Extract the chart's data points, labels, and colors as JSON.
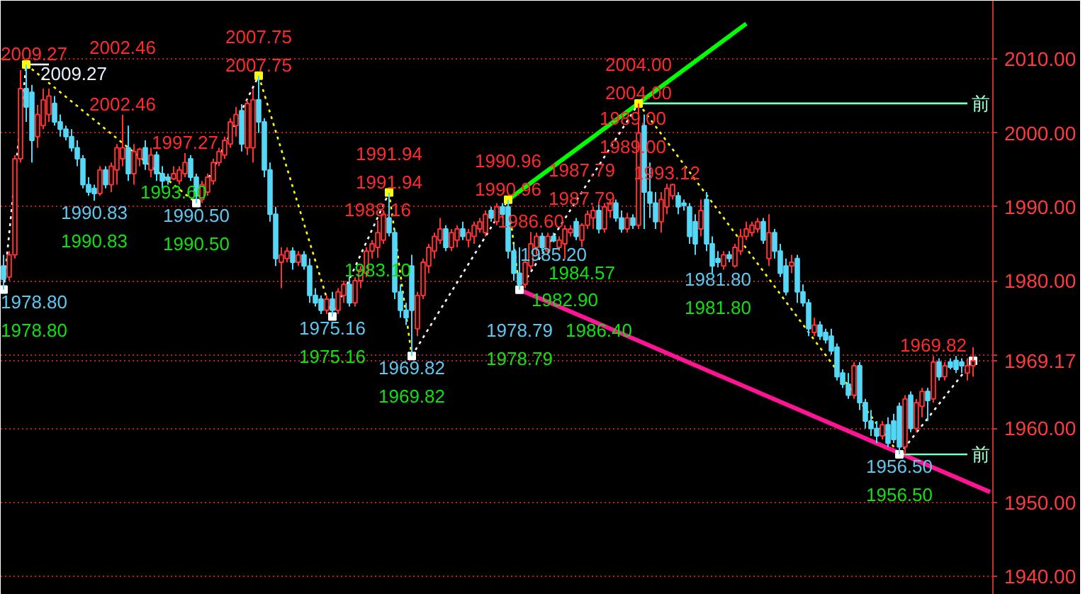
{
  "chart_data": {
    "type": "candlestick",
    "categories": [
      null,
      null,
      null,
      null,
      null,
      null,
      null,
      null,
      null,
      null,
      null,
      null,
      null,
      null,
      null,
      null,
      null,
      null,
      null,
      null,
      null,
      null,
      null,
      null,
      null,
      null,
      null,
      null,
      null,
      null,
      null,
      null,
      null,
      null,
      null,
      null,
      null,
      null,
      null,
      null,
      null,
      null,
      null,
      null,
      null,
      null,
      null,
      null,
      null,
      null,
      null,
      null,
      null,
      null,
      null,
      null,
      null,
      null,
      null,
      null,
      null,
      null,
      null,
      null,
      null,
      null,
      null,
      null,
      null,
      null,
      null,
      null,
      null,
      null,
      null,
      null,
      null,
      null,
      null,
      null,
      null,
      null,
      null,
      null,
      null,
      null,
      null,
      null,
      null,
      null,
      null,
      null,
      null,
      null,
      null,
      null,
      null,
      null,
      null,
      null,
      null,
      null,
      null,
      null,
      null,
      null,
      null,
      null,
      null,
      null,
      null,
      null,
      null,
      null,
      null,
      null,
      null,
      null,
      null,
      null,
      null,
      null,
      null,
      null,
      null,
      null,
      null,
      null,
      null,
      null,
      null,
      null,
      null,
      null,
      null,
      null,
      null,
      null,
      null,
      null,
      null,
      null,
      null,
      null,
      null,
      null,
      null,
      null,
      null,
      null,
      null,
      null,
      null,
      null,
      null,
      null,
      null,
      null,
      null,
      null,
      null,
      null,
      null,
      null,
      null,
      null,
      null,
      null,
      null,
      null,
      null,
      null,
      null,
      null,
      null
    ],
    "ohlc": [
      [
        1982.0,
        1983.5,
        1978.8,
        1980.2
      ],
      [
        1980.5,
        1984.0,
        1980.0,
        1983.5
      ],
      [
        1983.5,
        1997.0,
        1983.0,
        1996.5
      ],
      [
        1996.5,
        2008.5,
        1996.0,
        2006.0
      ],
      [
        2006.0,
        2009.27,
        2001.5,
        2003.5
      ],
      [
        2005.5,
        2006.5,
        1996.0,
        1999.0
      ],
      [
        1999.5,
        2003.8,
        1998.0,
        2002.5
      ],
      [
        2001.0,
        2006.0,
        2000.5,
        2004.5
      ],
      [
        2002.5,
        2006.0,
        2001.5,
        2005.0
      ],
      [
        2004.0,
        2005.0,
        2001.0,
        2001.5
      ],
      [
        2001.5,
        2002.5,
        1999.5,
        2000.5
      ],
      [
        2000.5,
        2001.0,
        1999.0,
        1999.5
      ],
      [
        1999.5,
        2000.5,
        1997.5,
        1998.0
      ],
      [
        1998.0,
        1999.0,
        1995.5,
        1996.5
      ],
      [
        1996.5,
        1997.0,
        1992.5,
        1993.0
      ],
      [
        1993.0,
        1994.0,
        1991.5,
        1992.0
      ],
      [
        1992.5,
        1993.0,
        1990.83,
        1991.8
      ],
      [
        1991.8,
        1995.5,
        1991.5,
        1995.0
      ],
      [
        1995.0,
        1995.5,
        1992.5,
        1993.0
      ],
      [
        1993.0,
        1996.0,
        1992.0,
        1995.5
      ],
      [
        1995.0,
        1998.5,
        1993.0,
        1998.0
      ],
      [
        1996.5,
        2002.46,
        1995.5,
        1998.0
      ],
      [
        1998.0,
        2001.0,
        1993.5,
        1994.5
      ],
      [
        1994.5,
        1998.5,
        1993.0,
        1997.5
      ],
      [
        1996.5,
        1998.0,
        1995.5,
        1997.8
      ],
      [
        1998.0,
        1999.0,
        1995.0,
        1995.8
      ],
      [
        1995.0,
        1998.0,
        1994.0,
        1997.0
      ],
      [
        1997.0,
        1997.5,
        1993.5,
        1994.5
      ],
      [
        1994.5,
        1995.5,
        1992.5,
        1993.5
      ],
      [
        1994.0,
        1994.5,
        1993.0,
        1993.6
      ],
      [
        1993.8,
        1995.5,
        1993.6,
        1994.5
      ],
      [
        1993.5,
        1995.5,
        1993.0,
        1995.0
      ],
      [
        1994.5,
        1997.27,
        1994.0,
        1996.0
      ],
      [
        1996.5,
        1997.0,
        1993.5,
        1994.0
      ],
      [
        1994.0,
        1994.5,
        1990.5,
        1991.5
      ],
      [
        1991.0,
        1993.5,
        1990.5,
        1993.0
      ],
      [
        1992.0,
        1994.5,
        1991.5,
        1994.0
      ],
      [
        1993.5,
        1996.5,
        1993.0,
        1996.0
      ],
      [
        1996.0,
        1998.0,
        1995.5,
        1997.5
      ],
      [
        1997.0,
        1999.5,
        1996.5,
        1999.0
      ],
      [
        1998.5,
        2002.0,
        1998.0,
        2001.5
      ],
      [
        2001.0,
        2003.5,
        1999.5,
        2002.5
      ],
      [
        2003.0,
        2003.9,
        1997.5,
        1998.5
      ],
      [
        1998.0,
        2004.5,
        1997.0,
        2004.0
      ],
      [
        1998.0,
        2006.0,
        1996.0,
        2004.5
      ],
      [
        2004.5,
        2007.75,
        2000.0,
        2001.5
      ],
      [
        2001.5,
        2002.0,
        1994.0,
        1995.0
      ],
      [
        1995.0,
        1996.0,
        1988.0,
        1989.0
      ],
      [
        1989.0,
        1990.0,
        1982.0,
        1983.0
      ],
      [
        1982.5,
        1984.5,
        1979.0,
        1983.5
      ],
      [
        1983.0,
        1984.5,
        1982.5,
        1984.0
      ],
      [
        1984.0,
        1984.5,
        1981.5,
        1982.5
      ],
      [
        1982.5,
        1984.0,
        1982.0,
        1983.5
      ],
      [
        1983.5,
        1984.0,
        1981.5,
        1982.0
      ],
      [
        1982.0,
        1983.0,
        1977.0,
        1978.0
      ],
      [
        1978.0,
        1979.0,
        1976.5,
        1977.0
      ],
      [
        1977.5,
        1978.0,
        1975.5,
        1976.0
      ],
      [
        1976.0,
        1978.0,
        1975.5,
        1977.5
      ],
      [
        1977.5,
        1978.5,
        1975.16,
        1976.0
      ],
      [
        1976.0,
        1979.0,
        1975.5,
        1978.5
      ],
      [
        1978.0,
        1980.0,
        1977.0,
        1979.5
      ],
      [
        1979.5,
        1980.5,
        1976.5,
        1977.0
      ],
      [
        1977.0,
        1980.5,
        1976.5,
        1980.0
      ],
      [
        1980.0,
        1982.0,
        1979.0,
        1981.5
      ],
      [
        1981.0,
        1984.5,
        1980.5,
        1984.0
      ],
      [
        1984.0,
        1985.5,
        1983.0,
        1985.0
      ],
      [
        1984.5,
        1988.16,
        1983.1,
        1986.5
      ],
      [
        1985.5,
        1989.5,
        1985.0,
        1989.0
      ],
      [
        1988.5,
        1991.94,
        1986.0,
        1986.5
      ],
      [
        1986.5,
        1987.0,
        1977.5,
        1978.5
      ],
      [
        1978.5,
        1979.5,
        1975.0,
        1976.0
      ],
      [
        1976.0,
        1977.0,
        1974.0,
        1975.0
      ],
      [
        1982.0,
        1983.5,
        1969.82,
        1976.0
      ],
      [
        1973.5,
        1978.5,
        1972.5,
        1978.0
      ],
      [
        1978.0,
        1983.0,
        1977.5,
        1982.5
      ],
      [
        1982.0,
        1985.0,
        1981.0,
        1984.5
      ],
      [
        1984.0,
        1986.5,
        1983.0,
        1986.0
      ],
      [
        1985.5,
        1988.5,
        1985.0,
        1987.0
      ],
      [
        1987.0,
        1987.5,
        1984.0,
        1984.5
      ],
      [
        1984.5,
        1987.0,
        1984.0,
        1986.5
      ],
      [
        1985.5,
        1987.5,
        1984.5,
        1987.0
      ],
      [
        1987.0,
        1988.0,
        1985.5,
        1986.0
      ],
      [
        1985.5,
        1987.0,
        1984.5,
        1986.5
      ],
      [
        1986.0,
        1988.0,
        1985.0,
        1987.5
      ],
      [
        1987.0,
        1988.5,
        1986.5,
        1988.0
      ],
      [
        1986.5,
        1989.5,
        1986.0,
        1989.0
      ],
      [
        1989.5,
        1990.0,
        1988.0,
        1988.5
      ],
      [
        1988.0,
        1990.5,
        1987.5,
        1990.0
      ],
      [
        1990.0,
        1990.5,
        1988.5,
        1989.0
      ],
      [
        1990.0,
        1990.96,
        1983.0,
        1984.0
      ],
      [
        1984.0,
        1985.0,
        1980.0,
        1981.0
      ],
      [
        1981.0,
        1984.5,
        1978.79,
        1979.5
      ],
      [
        1979.5,
        1983.0,
        1979.0,
        1982.5
      ],
      [
        1982.0,
        1986.6,
        1981.5,
        1985.0
      ],
      [
        1984.5,
        1986.5,
        1983.5,
        1986.0
      ],
      [
        1986.0,
        1986.5,
        1984.0,
        1984.5
      ],
      [
        1984.0,
        1986.5,
        1983.5,
        1986.0
      ],
      [
        1986.0,
        1986.5,
        1985.2,
        1985.4
      ],
      [
        1984.5,
        1986.0,
        1984.0,
        1985.5
      ],
      [
        1985.0,
        1987.5,
        1982.9,
        1987.0
      ],
      [
        1986.5,
        1987.5,
        1986.0,
        1987.0
      ],
      [
        1988.0,
        1988.5,
        1985.5,
        1986.0
      ],
      [
        1985.5,
        1987.79,
        1984.57,
        1987.5
      ],
      [
        1987.5,
        1989.5,
        1987.0,
        1989.0
      ],
      [
        1988.5,
        1990.0,
        1987.0,
        1989.5
      ],
      [
        1989.5,
        1990.5,
        1986.4,
        1987.0
      ],
      [
        1987.0,
        1990.5,
        1986.5,
        1990.0
      ],
      [
        1989.5,
        1991.0,
        1988.5,
        1990.5
      ],
      [
        1990.5,
        1991.0,
        1988.0,
        1988.5
      ],
      [
        1988.5,
        1989.5,
        1986.5,
        1987.0
      ],
      [
        1987.0,
        1989.2,
        1986.5,
        1988.5
      ],
      [
        1988.5,
        1989.0,
        1987.0,
        1987.5
      ],
      [
        1987.5,
        2004.0,
        1987.0,
        2000.0
      ],
      [
        2001.0,
        2002.5,
        1987.0,
        1992.0
      ],
      [
        1992.0,
        1996.0,
        1988.5,
        1990.5
      ],
      [
        1990.5,
        1992.0,
        1987.0,
        1988.0
      ],
      [
        1988.0,
        1992.0,
        1986.5,
        1991.0
      ],
      [
        1990.0,
        1993.12,
        1989.0,
        1992.5
      ],
      [
        1991.5,
        1993.12,
        1991.0,
        1993.0
      ],
      [
        1991.5,
        1992.0,
        1989.0,
        1990.0
      ],
      [
        1990.5,
        1991.0,
        1989.5,
        1990.2
      ],
      [
        1990.0,
        1990.5,
        1985.0,
        1986.0
      ],
      [
        1988.0,
        1989.0,
        1983.5,
        1985.0
      ],
      [
        1987.0,
        1991.0,
        1986.0,
        1989.5
      ],
      [
        1991.0,
        1992.0,
        1984.0,
        1985.0
      ],
      [
        1985.0,
        1986.0,
        1981.0,
        1982.0
      ],
      [
        1983.0,
        1984.0,
        1981.8,
        1982.5
      ],
      [
        1982.0,
        1984.0,
        1981.5,
        1983.5
      ],
      [
        1983.5,
        1984.0,
        1982.5,
        1983.0
      ],
      [
        1982.0,
        1985.0,
        1981.8,
        1984.5
      ],
      [
        1984.0,
        1987.0,
        1983.5,
        1986.0
      ],
      [
        1986.0,
        1988.0,
        1985.5,
        1987.0
      ],
      [
        1986.5,
        1988.0,
        1986.0,
        1987.5
      ],
      [
        1987.0,
        1988.5,
        1986.5,
        1988.0
      ],
      [
        1988.0,
        1988.5,
        1985.0,
        1985.5
      ],
      [
        1983.0,
        1989.0,
        1982.0,
        1986.5
      ],
      [
        1986.5,
        1987.0,
        1983.0,
        1984.0
      ],
      [
        1984.0,
        1985.0,
        1980.5,
        1981.0
      ],
      [
        1982.0,
        1983.0,
        1978.0,
        1978.5
      ],
      [
        1982.0,
        1983.5,
        1981.0,
        1982.5
      ],
      [
        1983.0,
        1983.5,
        1977.0,
        1978.5
      ],
      [
        1978.5,
        1979.5,
        1976.5,
        1977.0
      ],
      [
        1977.0,
        1977.5,
        1972.5,
        1973.5
      ],
      [
        1973.0,
        1975.0,
        1972.5,
        1974.0
      ],
      [
        1974.0,
        1974.5,
        1972.0,
        1972.5
      ],
      [
        1973.0,
        1973.5,
        1971.5,
        1972.0
      ],
      [
        1972.5,
        1973.5,
        1970.0,
        1970.5
      ],
      [
        1971.0,
        1971.5,
        1966.5,
        1967.0
      ],
      [
        1967.5,
        1968.0,
        1965.5,
        1966.0
      ],
      [
        1966.0,
        1967.5,
        1964.0,
        1964.5
      ],
      [
        1964.5,
        1969.0,
        1964.0,
        1968.5
      ],
      [
        1968.5,
        1969.0,
        1962.5,
        1963.5
      ],
      [
        1963.5,
        1964.0,
        1960.0,
        1961.0
      ],
      [
        1961.0,
        1962.5,
        1959.0,
        1960.0
      ],
      [
        1960.0,
        1961.0,
        1958.0,
        1959.0
      ],
      [
        1959.0,
        1961.0,
        1958.5,
        1960.5
      ],
      [
        1960.5,
        1961.5,
        1957.5,
        1958.0
      ],
      [
        1961.0,
        1962.0,
        1958.0,
        1958.5
      ],
      [
        1963.0,
        1963.5,
        1956.5,
        1957.5
      ],
      [
        1957.5,
        1964.5,
        1956.5,
        1964.0
      ],
      [
        1964.5,
        1965.0,
        1959.5,
        1960.0
      ],
      [
        1960.0,
        1964.0,
        1959.5,
        1963.5
      ],
      [
        1963.0,
        1965.5,
        1961.5,
        1965.0
      ],
      [
        1965.0,
        1965.5,
        1961.0,
        1963.8
      ],
      [
        1964.0,
        1969.82,
        1963.5,
        1969.0
      ],
      [
        1969.0,
        1969.5,
        1966.5,
        1967.0
      ],
      [
        1967.0,
        1969.0,
        1966.5,
        1968.5
      ],
      [
        1969.0,
        1969.5,
        1968.0,
        1968.3
      ],
      [
        1969.2,
        1969.8,
        1967.5,
        1968.0
      ],
      [
        1969.0,
        1969.5,
        1967.5,
        1968.5
      ],
      [
        1967.5,
        1969.5,
        1966.5,
        1968.5
      ],
      [
        1968.5,
        1971.0,
        1967.0,
        1969.17
      ],
      null,
      null,
      null
    ],
    "series": [
      {
        "type": "line",
        "color": "#00ff00",
        "values": [
          null,
          null,
          null,
          null,
          null,
          null,
          null,
          null,
          null,
          null,
          null,
          null,
          null,
          null,
          null,
          null,
          null,
          null,
          null,
          null,
          null,
          null,
          null,
          null,
          null,
          null,
          null,
          null,
          null,
          null,
          null,
          null,
          null,
          null,
          null,
          null,
          null,
          null,
          null,
          null,
          null,
          null,
          null,
          null,
          null,
          null,
          null,
          null,
          null,
          null,
          null,
          null,
          null,
          null,
          null,
          null,
          null,
          null,
          null,
          null,
          null,
          null,
          null,
          null,
          null,
          null,
          null,
          null,
          null,
          null,
          null,
          null,
          null,
          null,
          null,
          null,
          null,
          null,
          null,
          null,
          null,
          null,
          null,
          null,
          null,
          null,
          null,
          null,
          null,
          1990.96,
          null,
          null,
          null,
          null,
          null,
          null,
          null,
          null,
          null,
          null,
          null,
          null,
          null,
          null,
          null,
          null,
          null,
          null,
          null,
          null,
          null,
          null,
          null,
          null,
          null,
          null,
          null,
          null,
          null,
          null,
          null,
          null,
          null,
          null,
          null,
          null,
          null,
          null,
          null,
          null,
          null,
          2014.8,
          null,
          null,
          null,
          null,
          null,
          null,
          null,
          null,
          null,
          null,
          null,
          null,
          null,
          null,
          null,
          null,
          null,
          null,
          null,
          null,
          null,
          null,
          null,
          null,
          null,
          null,
          null,
          null,
          null,
          null,
          null,
          null,
          null,
          null,
          null,
          null,
          null,
          null,
          null,
          null,
          null,
          null,
          null
        ]
      },
      {
        "type": "line",
        "color": "#ff1493",
        "values": [
          null,
          null,
          null,
          null,
          null,
          null,
          null,
          null,
          null,
          null,
          null,
          null,
          null,
          null,
          null,
          null,
          null,
          null,
          null,
          null,
          null,
          null,
          null,
          null,
          null,
          null,
          null,
          null,
          null,
          null,
          null,
          null,
          null,
          null,
          null,
          null,
          null,
          null,
          null,
          null,
          null,
          null,
          null,
          null,
          null,
          null,
          null,
          null,
          null,
          null,
          null,
          null,
          null,
          null,
          null,
          null,
          null,
          null,
          null,
          null,
          null,
          null,
          null,
          null,
          null,
          null,
          null,
          null,
          null,
          null,
          null,
          null,
          null,
          null,
          null,
          null,
          null,
          null,
          null,
          null,
          null,
          null,
          null,
          null,
          null,
          null,
          null,
          null,
          null,
          null,
          null,
          1978.79,
          null,
          null,
          null,
          null,
          null,
          null,
          null,
          null,
          null,
          null,
          null,
          null,
          null,
          null,
          null,
          null,
          null,
          null,
          null,
          null,
          null,
          null,
          null,
          null,
          null,
          null,
          null,
          null,
          null,
          null,
          null,
          null,
          null,
          null,
          null,
          null,
          null,
          null,
          null,
          null,
          null,
          null,
          null,
          null,
          null,
          null,
          null,
          null,
          null,
          null,
          null,
          null,
          null,
          null,
          null,
          null,
          null,
          null,
          null,
          null,
          null,
          null,
          null,
          null,
          null,
          null,
          null,
          null,
          null,
          null,
          null,
          null,
          null,
          null,
          null,
          null,
          null,
          null,
          null,
          null,
          null,
          null,
          1951.4
        ]
      },
      {
        "type": "line",
        "color": "#80ffc0",
        "values": [
          null,
          null,
          null,
          null,
          null,
          null,
          null,
          null,
          null,
          null,
          null,
          null,
          null,
          null,
          null,
          null,
          null,
          null,
          null,
          null,
          null,
          null,
          null,
          null,
          null,
          null,
          null,
          null,
          null,
          null,
          null,
          null,
          null,
          null,
          null,
          null,
          null,
          null,
          null,
          null,
          null,
          null,
          null,
          null,
          null,
          null,
          null,
          null,
          null,
          null,
          null,
          null,
          null,
          null,
          null,
          null,
          null,
          null,
          null,
          null,
          null,
          null,
          null,
          null,
          null,
          null,
          null,
          null,
          null,
          null,
          null,
          null,
          null,
          null,
          null,
          null,
          null,
          null,
          null,
          null,
          null,
          null,
          null,
          null,
          null,
          null,
          null,
          null,
          null,
          null,
          null,
          null,
          null,
          null,
          null,
          null,
          null,
          null,
          null,
          null,
          null,
          null,
          null,
          null,
          null,
          null,
          null,
          null,
          null,
          null,
          null,
          null,
          2004.0,
          null,
          null,
          null,
          null,
          null,
          null,
          null,
          null,
          null,
          null,
          null,
          null,
          null,
          null,
          null,
          null,
          null,
          null,
          null,
          null,
          null,
          null,
          null,
          null,
          null,
          null,
          null,
          null,
          null,
          null,
          null,
          null,
          null,
          null,
          null,
          null,
          null,
          null,
          null,
          null,
          null,
          null,
          null,
          null,
          null,
          null,
          null,
          null,
          null,
          null,
          null,
          null,
          null,
          null,
          null,
          null,
          null,
          2004.0,
          null,
          null,
          null,
          null
        ]
      },
      {
        "type": "line",
        "color": "#80ffc0",
        "values": [
          null,
          null,
          null,
          null,
          null,
          null,
          null,
          null,
          null,
          null,
          null,
          null,
          null,
          null,
          null,
          null,
          null,
          null,
          null,
          null,
          null,
          null,
          null,
          null,
          null,
          null,
          null,
          null,
          null,
          null,
          null,
          null,
          null,
          null,
          null,
          null,
          null,
          null,
          null,
          null,
          null,
          null,
          null,
          null,
          null,
          null,
          null,
          null,
          null,
          null,
          null,
          null,
          null,
          null,
          null,
          null,
          null,
          null,
          null,
          null,
          null,
          null,
          null,
          null,
          null,
          null,
          null,
          null,
          null,
          null,
          null,
          null,
          null,
          null,
          null,
          null,
          null,
          null,
          null,
          null,
          null,
          null,
          null,
          null,
          null,
          null,
          null,
          null,
          null,
          null,
          null,
          null,
          null,
          null,
          null,
          null,
          null,
          null,
          null,
          null,
          null,
          null,
          null,
          null,
          null,
          null,
          null,
          null,
          null,
          null,
          null,
          null,
          null,
          null,
          null,
          null,
          null,
          null,
          null,
          null,
          null,
          null,
          null,
          null,
          null,
          null,
          null,
          null,
          null,
          null,
          null,
          null,
          null,
          null,
          null,
          null,
          null,
          null,
          null,
          null,
          null,
          null,
          null,
          null,
          null,
          null,
          null,
          null,
          null,
          null,
          null,
          null,
          null,
          null,
          null,
          null,
          null,
          null,
          1956.5,
          null,
          null,
          null,
          null,
          null,
          null,
          null,
          null,
          null,
          null,
          null,
          1956.5,
          null,
          null,
          null,
          null
        ]
      },
      {
        "type": "line",
        "color": "#ffffff",
        "values": [
          null,
          null,
          null,
          null,
          2009.27,
          null,
          null,
          null,
          2009.27,
          null,
          null,
          null,
          null,
          null,
          null,
          null,
          null,
          null,
          null,
          null,
          null,
          null,
          null,
          null,
          null,
          null,
          null,
          null,
          null,
          null,
          null,
          null,
          null,
          null,
          null,
          null,
          null,
          null,
          null,
          null,
          null,
          null,
          null,
          null,
          null,
          null,
          null,
          null,
          null,
          null,
          null,
          null,
          null,
          null,
          null,
          null,
          null,
          null,
          null,
          null,
          null,
          null,
          null,
          null,
          null,
          null,
          null,
          null,
          null,
          null,
          null,
          null,
          null,
          null,
          null,
          null,
          null,
          null,
          null,
          null,
          null,
          null,
          null,
          null,
          null,
          null,
          null,
          null,
          null,
          null,
          null,
          null,
          null,
          null,
          null,
          null,
          null,
          null,
          null,
          null,
          null,
          null,
          null,
          null,
          null,
          null,
          null,
          null,
          null,
          null,
          null,
          null,
          null,
          null,
          null,
          null,
          null,
          null,
          null,
          null,
          null,
          null,
          null,
          null,
          null,
          null,
          null,
          null,
          null,
          null,
          null,
          null,
          null,
          null,
          null,
          null,
          null,
          null,
          null,
          null,
          null,
          null,
          null,
          null,
          null,
          null,
          null,
          null,
          null,
          null,
          null,
          null,
          null,
          null,
          null,
          null,
          null,
          null,
          null,
          null,
          null,
          null,
          null,
          null,
          null,
          null,
          null,
          null,
          null,
          null,
          null,
          null,
          null,
          null,
          null
        ]
      },
      {
        "type": "line",
        "line_style": "dotted",
        "marker": "square",
        "values": [
          1978.8,
          null,
          null,
          null,
          2009.27,
          null,
          null,
          null,
          null,
          null,
          null,
          null,
          null,
          null,
          null,
          null,
          null,
          null,
          null,
          null,
          null,
          null,
          null,
          null,
          null,
          null,
          null,
          null,
          null,
          null,
          null,
          null,
          null,
          null,
          1990.5,
          null,
          null,
          null,
          null,
          null,
          null,
          null,
          null,
          null,
          null,
          2007.75,
          null,
          null,
          null,
          null,
          null,
          null,
          null,
          null,
          null,
          null,
          null,
          null,
          1975.16,
          null,
          null,
          null,
          null,
          null,
          null,
          null,
          null,
          null,
          1991.94,
          null,
          null,
          null,
          1969.82,
          null,
          null,
          null,
          null,
          null,
          null,
          null,
          null,
          null,
          null,
          null,
          null,
          null,
          null,
          null,
          null,
          1990.96,
          null,
          1978.79,
          null,
          null,
          null,
          null,
          null,
          null,
          null,
          null,
          null,
          null,
          null,
          null,
          null,
          null,
          null,
          null,
          null,
          null,
          null,
          null,
          2004.0,
          null,
          null,
          null,
          null,
          null,
          null,
          null,
          null,
          null,
          null,
          null,
          null,
          null,
          null,
          null,
          null,
          null,
          null,
          null,
          null,
          null,
          null,
          null,
          null,
          null,
          null,
          null,
          null,
          null,
          null,
          null,
          null,
          null,
          null,
          null,
          null,
          null,
          null,
          null,
          null,
          null,
          null,
          null,
          null,
          null,
          1956.5,
          null,
          null,
          null,
          null,
          null,
          null,
          null,
          null,
          null,
          null,
          null,
          null,
          1969.17,
          null,
          null,
          null
        ],
        "colors": [
          "#ffffff",
          null,
          null,
          null,
          "#ffff00",
          null,
          null,
          null,
          null,
          null,
          null,
          null,
          null,
          null,
          null,
          null,
          null,
          null,
          null,
          null,
          null,
          null,
          null,
          null,
          null,
          null,
          null,
          null,
          null,
          null,
          null,
          null,
          null,
          null,
          "#ffffff",
          null,
          null,
          null,
          null,
          null,
          null,
          null,
          null,
          null,
          null,
          "#ffff00",
          null,
          null,
          null,
          null,
          null,
          null,
          null,
          null,
          null,
          null,
          null,
          null,
          "#ffffff",
          null,
          null,
          null,
          null,
          null,
          null,
          null,
          null,
          null,
          "#ffff00",
          null,
          null,
          null,
          "#ffffff",
          null,
          null,
          null,
          null,
          null,
          null,
          null,
          null,
          null,
          null,
          null,
          null,
          null,
          null,
          null,
          null,
          "#ffff00",
          null,
          "#ffffff",
          null,
          null,
          null,
          null,
          null,
          null,
          null,
          null,
          null,
          null,
          null,
          null,
          null,
          null,
          null,
          null,
          null,
          null,
          null,
          null,
          "#ffff00",
          null,
          null,
          null,
          null,
          null,
          null,
          null,
          null,
          null,
          null,
          null,
          null,
          null,
          null,
          null,
          null,
          null,
          null,
          null,
          null,
          null,
          null,
          null,
          null,
          null,
          null,
          null,
          null,
          null,
          null,
          null,
          null,
          null,
          null,
          null,
          null,
          null,
          null,
          null,
          null,
          null,
          null,
          null,
          null,
          null,
          "#ffffff",
          null,
          null,
          null,
          null,
          null,
          null,
          null,
          null,
          null,
          null,
          null,
          null,
          "#ffffff",
          null,
          null,
          null
        ]
      }
    ],
    "annotations": [
      "2009.27",
      "2009.27",
      "2002.46",
      "2002.46",
      "1997.27",
      "1990.83",
      "1990.83",
      "1993.60",
      "1990.50",
      "1990.50",
      "2007.75",
      "2007.75",
      "1975.16",
      "1975.16",
      "1991.94",
      "1991.94",
      "1988.16",
      "1983.10",
      "1969.82",
      "1969.82",
      "1990.96",
      "1990.96",
      "1986.60",
      "1987.79",
      "1987.79",
      "1985.20",
      "1984.57",
      "1982.90",
      "1986.40",
      "1978.79",
      "1978.79",
      "2004.00",
      "2004.00",
      "1993.12",
      "1989.00",
      "1989.00",
      "1981.80",
      "1981.80",
      "1969.82",
      "1956.50",
      "1956.50",
      "1978.80",
      "1978.80",
      "前",
      "前"
    ],
    "ylim": [
      1937.5,
      2017.9
    ],
    "yticks": [
      {
        "value": 1940,
        "label": "1940.00"
      },
      {
        "value": 1950,
        "label": "1950.00"
      },
      {
        "value": 1960,
        "label": "1960.00"
      },
      {
        "value": 1969.17,
        "label": "1969.17"
      },
      {
        "value": 1970,
        "label": null
      },
      {
        "value": 1980,
        "label": "1980.00"
      },
      {
        "value": 1990,
        "label": "1990.00"
      },
      {
        "value": 2000,
        "label": "2000.00"
      },
      {
        "value": 2010,
        "label": "2010.00"
      }
    ],
    "grid": "y",
    "tick_labels": "y"
  }
}
